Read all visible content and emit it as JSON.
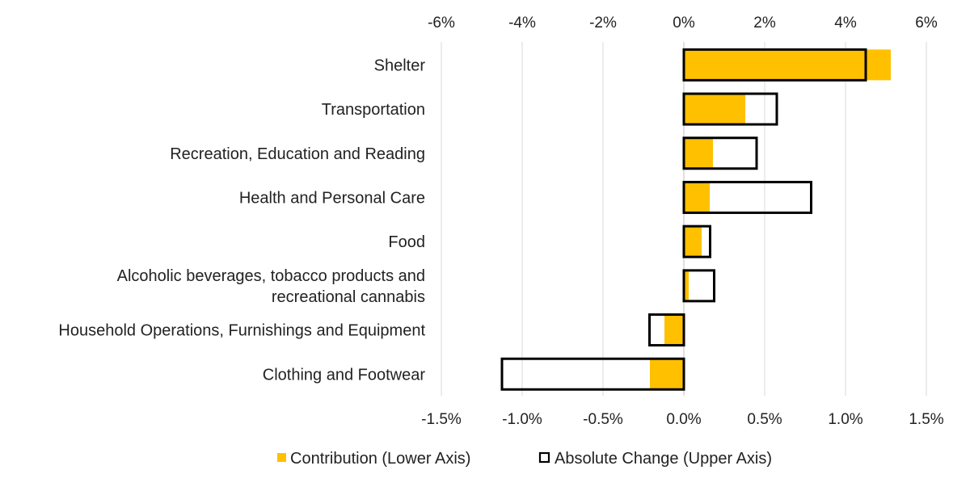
{
  "chart_data": {
    "type": "bar",
    "orientation": "horizontal",
    "categories": [
      [
        "Shelter"
      ],
      [
        "Transportation"
      ],
      [
        "Recreation, Education and Reading"
      ],
      [
        "Health and Personal Care"
      ],
      [
        "Food"
      ],
      [
        "Alcoholic beverages, tobacco products and",
        "recreational cannabis"
      ],
      [
        "Household Operations, Furnishings and Equipment"
      ],
      [
        "Clothing and Footwear"
      ]
    ],
    "series": [
      {
        "name": "Contribution (Lower Axis)",
        "axis": "lower",
        "color": "#FFC000",
        "style": "filled",
        "values": [
          1.28,
          0.38,
          0.18,
          0.16,
          0.11,
          0.03,
          -0.12,
          -0.21
        ]
      },
      {
        "name": "Absolute Change (Upper Axis)",
        "axis": "upper",
        "color": "#000000",
        "style": "outline",
        "values": [
          4.5,
          2.3,
          1.8,
          3.15,
          0.65,
          0.75,
          -0.85,
          -4.5
        ]
      }
    ],
    "upper_axis": {
      "ticks": [
        "-6%",
        "-4%",
        "-2%",
        "0%",
        "2%",
        "4%",
        "6%"
      ],
      "range": [
        -6,
        6
      ]
    },
    "lower_axis": {
      "ticks": [
        "-1.5%",
        "-1.0%",
        "-0.5%",
        "0.0%",
        "0.5%",
        "1.0%",
        "1.5%"
      ],
      "range": [
        -1.5,
        1.5
      ]
    },
    "grid": true,
    "legend_position": "bottom"
  }
}
